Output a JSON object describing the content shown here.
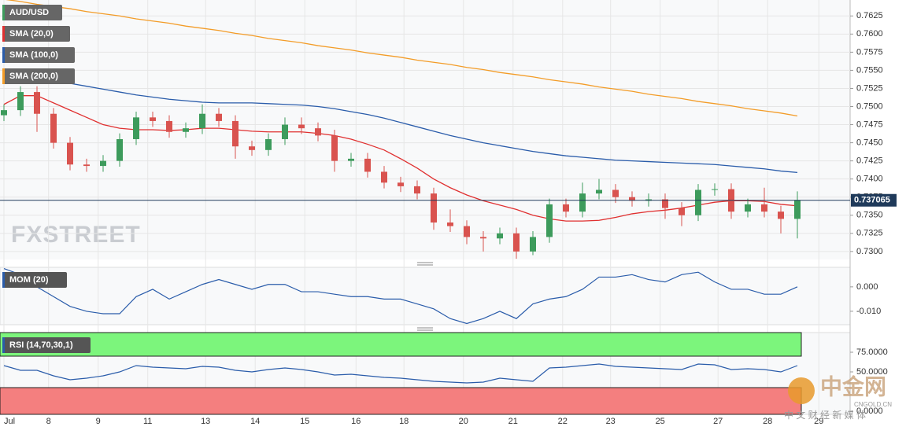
{
  "chart_data": {
    "type": "candlestick",
    "symbol": "AUD/USD",
    "open": [
      0.7488,
      0.7495,
      0.752,
      0.749,
      0.745,
      0.742,
      0.7418,
      0.7425,
      0.7455,
      0.7485,
      0.748,
      0.7465,
      0.747,
      0.749,
      0.748,
      0.7445,
      0.744,
      0.7455,
      0.7475,
      0.747,
      0.746,
      0.7425,
      0.7428,
      0.741,
      0.7395,
      0.739,
      0.738,
      0.734,
      0.7335,
      0.732,
      0.7318,
      0.7325,
      0.73,
      0.732,
      0.7365,
      0.7355,
      0.738,
      0.7385,
      0.7375,
      0.737,
      0.7372,
      0.736,
      0.735,
      0.7385,
      0.7386,
      0.7355,
      0.7365,
      0.7355,
      0.7345
    ],
    "high": [
      0.7503,
      0.7528,
      0.7528,
      0.7498,
      0.7458,
      0.7428,
      0.7433,
      0.7463,
      0.7493,
      0.7493,
      0.7488,
      0.7478,
      0.7503,
      0.7498,
      0.7488,
      0.7453,
      0.7463,
      0.7485,
      0.7485,
      0.7478,
      0.7468,
      0.7436,
      0.7436,
      0.7418,
      0.7403,
      0.7398,
      0.7388,
      0.7358,
      0.7343,
      0.7328,
      0.7333,
      0.7333,
      0.7328,
      0.7373,
      0.7373,
      0.7395,
      0.74,
      0.7393,
      0.7383,
      0.738,
      0.738,
      0.7368,
      0.7393,
      0.7394,
      0.7394,
      0.7373,
      0.7388,
      0.7363,
      0.7383
    ],
    "low": [
      0.748,
      0.7487,
      0.7465,
      0.7442,
      0.7412,
      0.741,
      0.741,
      0.7417,
      0.7447,
      0.7472,
      0.7457,
      0.7457,
      0.7462,
      0.7472,
      0.7428,
      0.7432,
      0.7432,
      0.7447,
      0.7462,
      0.7452,
      0.741,
      0.7417,
      0.7402,
      0.7387,
      0.7382,
      0.7372,
      0.733,
      0.7327,
      0.731,
      0.73,
      0.731,
      0.729,
      0.7295,
      0.7312,
      0.7347,
      0.7347,
      0.7372,
      0.7367,
      0.7362,
      0.7362,
      0.7345,
      0.7335,
      0.7342,
      0.7377,
      0.7345,
      0.7347,
      0.7347,
      0.7325,
      0.7318
    ],
    "close": [
      0.7495,
      0.752,
      0.749,
      0.745,
      0.742,
      0.7418,
      0.7425,
      0.7455,
      0.7485,
      0.748,
      0.7465,
      0.747,
      0.749,
      0.748,
      0.7445,
      0.744,
      0.7455,
      0.7475,
      0.747,
      0.746,
      0.7425,
      0.7428,
      0.741,
      0.7395,
      0.739,
      0.738,
      0.734,
      0.7335,
      0.732,
      0.7318,
      0.7325,
      0.73,
      0.732,
      0.7365,
      0.7355,
      0.738,
      0.7385,
      0.7375,
      0.737,
      0.7372,
      0.736,
      0.735,
      0.7385,
      0.7386,
      0.7355,
      0.7365,
      0.7355,
      0.7345,
      0.7371
    ],
    "up_color": "#3d9b5c",
    "down_color": "#d9534f",
    "series": [
      {
        "name": "SMA (20,0)",
        "color": "#e03030",
        "values": [
          0.7503,
          0.7515,
          0.7515,
          0.7505,
          0.7495,
          0.7485,
          0.7475,
          0.747,
          0.7468,
          0.7468,
          0.7467,
          0.7468,
          0.747,
          0.747,
          0.7468,
          0.7466,
          0.7465,
          0.7465,
          0.7465,
          0.7463,
          0.746,
          0.7455,
          0.7448,
          0.744,
          0.7428,
          0.7415,
          0.74,
          0.7388,
          0.7378,
          0.737,
          0.7364,
          0.7358,
          0.735,
          0.7345,
          0.7342,
          0.7342,
          0.7343,
          0.7347,
          0.7352,
          0.7355,
          0.7357,
          0.736,
          0.7364,
          0.7368,
          0.737,
          0.737,
          0.7369,
          0.7365,
          0.7363
        ]
      },
      {
        "name": "SMA (100,0)",
        "color": "#2a5caa",
        "values": [
          0.7548,
          0.7545,
          0.754,
          0.7536,
          0.7532,
          0.7528,
          0.7524,
          0.752,
          0.7516,
          0.7513,
          0.751,
          0.7508,
          0.7506,
          0.7505,
          0.7505,
          0.7505,
          0.7504,
          0.7503,
          0.7502,
          0.75,
          0.7497,
          0.7493,
          0.7489,
          0.7484,
          0.7478,
          0.7472,
          0.7466,
          0.746,
          0.7455,
          0.745,
          0.7446,
          0.7442,
          0.7438,
          0.7435,
          0.7432,
          0.743,
          0.7428,
          0.7426,
          0.7425,
          0.7424,
          0.7423,
          0.7422,
          0.7421,
          0.742,
          0.7418,
          0.7416,
          0.7414,
          0.7411,
          0.7409
        ]
      },
      {
        "name": "SMA (200,0)",
        "color": "#f39c28",
        "values": [
          0.7648,
          0.7645,
          0.7641,
          0.7638,
          0.7635,
          0.7631,
          0.7628,
          0.7625,
          0.7621,
          0.7618,
          0.7615,
          0.7611,
          0.7608,
          0.7605,
          0.7601,
          0.7598,
          0.7594,
          0.7591,
          0.7588,
          0.7584,
          0.7581,
          0.7578,
          0.7574,
          0.7571,
          0.7568,
          0.7564,
          0.7561,
          0.7558,
          0.7554,
          0.7551,
          0.7547,
          0.7544,
          0.7541,
          0.7537,
          0.7534,
          0.7531,
          0.7527,
          0.7524,
          0.7521,
          0.7517,
          0.7514,
          0.7511,
          0.7507,
          0.7504,
          0.7501,
          0.7497,
          0.7494,
          0.7491,
          0.7487
        ]
      }
    ],
    "ylim": [
      0.7289,
      0.7647
    ],
    "yticks": [
      {
        "value": 0.73,
        "label": "0.7300"
      },
      {
        "value": 0.7325,
        "label": "0.7325"
      },
      {
        "value": 0.735,
        "label": "0.7350"
      },
      {
        "value": 0.7375,
        "label": "0.7375"
      },
      {
        "value": 0.74,
        "label": "0.7400"
      },
      {
        "value": 0.7425,
        "label": "0.7425"
      },
      {
        "value": 0.745,
        "label": "0.7450"
      },
      {
        "value": 0.7475,
        "label": "0.7475"
      },
      {
        "value": 0.75,
        "label": "0.7500"
      },
      {
        "value": 0.7525,
        "label": "0.7525"
      },
      {
        "value": 0.755,
        "label": "0.7550"
      },
      {
        "value": 0.7575,
        "label": "0.7575"
      },
      {
        "value": 0.76,
        "label": "0.7600"
      },
      {
        "value": 0.7625,
        "label": "0.7625"
      }
    ],
    "last_price": {
      "value": 0.737065,
      "label": "0.737065"
    },
    "xticks": [
      {
        "value": 0,
        "label": "Jul"
      },
      {
        "value": 2.7,
        "label": "8"
      },
      {
        "value": 5.7,
        "label": "9"
      },
      {
        "value": 8.7,
        "label": "11"
      },
      {
        "value": 12.2,
        "label": "13"
      },
      {
        "value": 15.2,
        "label": "14"
      },
      {
        "value": 18.2,
        "label": "15"
      },
      {
        "value": 21.3,
        "label": "16"
      },
      {
        "value": 24.2,
        "label": "18"
      },
      {
        "value": 27.8,
        "label": "20"
      },
      {
        "value": 30.8,
        "label": "21"
      },
      {
        "value": 33.8,
        "label": "22"
      },
      {
        "value": 36.7,
        "label": "23"
      },
      {
        "value": 39.7,
        "label": "25"
      },
      {
        "value": 43.2,
        "label": "27"
      },
      {
        "value": 46.2,
        "label": "28"
      },
      {
        "value": 49.3,
        "label": "29"
      }
    ],
    "grid": true,
    "watermark": "FXSTREET",
    "indicators": [
      {
        "name": "MOM (20)",
        "color": "#2a5caa",
        "ylim": [
          -0.0155,
          0.008
        ],
        "yticks": [
          {
            "value": 0,
            "label": "0.000"
          },
          {
            "value": -0.01,
            "label": "-0.010"
          }
        ],
        "values": [
          0.0075,
          0.005,
          0.0,
          -0.004,
          -0.008,
          -0.01,
          -0.011,
          -0.011,
          -0.004,
          -0.001,
          -0.005,
          -0.002,
          0.001,
          0.003,
          0.001,
          -0.001,
          0.001,
          0.001,
          -0.002,
          -0.002,
          -0.003,
          -0.004,
          -0.004,
          -0.005,
          -0.005,
          -0.007,
          -0.009,
          -0.013,
          -0.015,
          -0.013,
          -0.01,
          -0.013,
          -0.007,
          -0.005,
          -0.004,
          -0.001,
          0.004,
          0.004,
          0.005,
          0.003,
          0.002,
          0.005,
          0.006,
          0.002,
          -0.001,
          -0.001,
          -0.003,
          -0.003,
          0.0
        ]
      },
      {
        "name": "RSI (14,70,30,1)",
        "color": "#2a5caa",
        "ylim": [
          0,
          100
        ],
        "overbought": 70,
        "oversold": 30,
        "yticks": [
          {
            "value": 0,
            "label": "0.0000"
          },
          {
            "value": 50,
            "label": "50.0000"
          },
          {
            "value": 75,
            "label": "75.0000"
          }
        ],
        "values": [
          58,
          52,
          52,
          45,
          40,
          42,
          45,
          50,
          58,
          56,
          55,
          54,
          57,
          56,
          52,
          50,
          53,
          55,
          53,
          50,
          46,
          47,
          45,
          43,
          42,
          40,
          38,
          37,
          36,
          37,
          42,
          40,
          38,
          55,
          56,
          58,
          60,
          57,
          56,
          55,
          54,
          53,
          60,
          59,
          53,
          54,
          53,
          50,
          58
        ]
      }
    ],
    "logo": {
      "name": "中金网",
      "site": "CNGOLD.CN",
      "slogan": "中 文 财 经 新 媒 体"
    }
  }
}
